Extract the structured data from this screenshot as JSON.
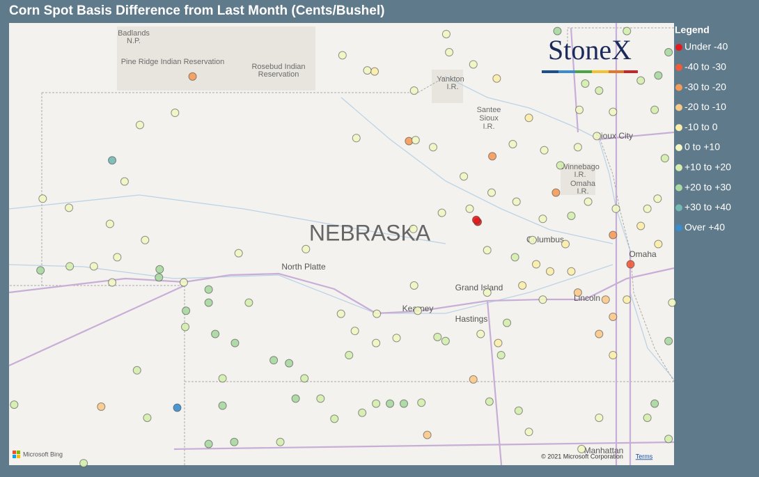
{
  "title": "Corn Spot Basis Difference from Last Month (Cents/Bushel)",
  "legend": {
    "title": "Legend",
    "layers": [
      {
        "name": "Under -40",
        "color": "#e41a1c",
        "points": [
          [
            -98.09,
            41.63
          ],
          [
            -98.11,
            41.65
          ]
        ]
      },
      {
        "name": "-40 to -30",
        "color": "#f05a3a",
        "points": [
          [
            -96.0,
            41.21
          ]
        ]
      },
      {
        "name": "-30 to -20",
        "color": "#f59b5a",
        "points": [
          [
            -101.99,
            43.07
          ],
          [
            -99.03,
            42.43
          ],
          [
            -97.89,
            42.28
          ],
          [
            -97.02,
            41.92
          ],
          [
            -96.24,
            41.5
          ]
        ]
      },
      {
        "name": "-20 to -10",
        "color": "#f9c98a",
        "points": [
          [
            -103.24,
            39.8
          ],
          [
            -98.78,
            39.52
          ],
          [
            -98.15,
            40.07
          ],
          [
            -96.72,
            40.93
          ],
          [
            -96.34,
            40.86
          ],
          [
            -96.24,
            40.69
          ],
          [
            -96.43,
            40.52
          ]
        ]
      },
      {
        "name": "-10 to 0",
        "color": "#fbeeaa",
        "points": [
          [
            -97.81,
            40.43
          ],
          [
            -97.83,
            43.05
          ],
          [
            -99.5,
            43.12
          ],
          [
            -97.39,
            42.66
          ],
          [
            -95.86,
            41.59
          ],
          [
            -96.89,
            41.41
          ],
          [
            -97.29,
            41.21
          ],
          [
            -97.48,
            41.0
          ],
          [
            -97.1,
            41.14
          ],
          [
            -96.81,
            41.14
          ],
          [
            -96.24,
            40.31
          ],
          [
            -95.62,
            41.41
          ],
          [
            -96.05,
            40.86
          ]
        ]
      },
      {
        "name": "0 to +10",
        "color": "#f1f6c2",
        "points": [
          [
            -102.23,
            42.71
          ],
          [
            -102.71,
            42.59
          ],
          [
            -102.92,
            42.03
          ],
          [
            -104.04,
            41.86
          ],
          [
            -103.68,
            41.77
          ],
          [
            -103.12,
            41.61
          ],
          [
            -102.64,
            41.45
          ],
          [
            -103.02,
            41.28
          ],
          [
            -102.11,
            41.03
          ],
          [
            -99.77,
            40.55
          ],
          [
            -99.48,
            40.43
          ],
          [
            -99.2,
            40.48
          ],
          [
            -98.91,
            40.75
          ],
          [
            -97.39,
            39.55
          ],
          [
            -96.67,
            39.38
          ],
          [
            -96.43,
            39.69
          ],
          [
            -95.43,
            40.83
          ],
          [
            -101.36,
            41.32
          ],
          [
            -100.44,
            41.36
          ],
          [
            -99.75,
            42.46
          ],
          [
            -98.94,
            42.44
          ],
          [
            -98.7,
            42.37
          ],
          [
            -99.94,
            43.28
          ],
          [
            -98.52,
            43.49
          ],
          [
            -98.48,
            43.31
          ],
          [
            -98.15,
            43.19
          ],
          [
            -98.96,
            42.93
          ],
          [
            -99.6,
            43.13
          ],
          [
            -97.61,
            42.4
          ],
          [
            -97.18,
            42.34
          ],
          [
            -96.72,
            42.37
          ],
          [
            -96.46,
            42.48
          ],
          [
            -96.7,
            42.74
          ],
          [
            -96.24,
            42.72
          ],
          [
            -95.63,
            41.86
          ],
          [
            -96.2,
            41.76
          ],
          [
            -96.58,
            41.83
          ],
          [
            -97.2,
            41.66
          ],
          [
            -97.34,
            41.45
          ],
          [
            -97.96,
            41.35
          ],
          [
            -98.2,
            41.76
          ],
          [
            -97.56,
            41.83
          ],
          [
            -97.2,
            40.86
          ],
          [
            -97.96,
            40.93
          ],
          [
            -98.96,
            41.0
          ],
          [
            -99.47,
            40.72
          ],
          [
            -99.96,
            40.72
          ],
          [
            -98.05,
            40.52
          ],
          [
            -98.58,
            41.72
          ],
          [
            -98.97,
            41.56
          ],
          [
            -98.28,
            42.08
          ],
          [
            -97.9,
            41.92
          ],
          [
            -103.09,
            41.03
          ],
          [
            -103.34,
            41.19
          ],
          [
            -95.77,
            41.76
          ]
        ]
      },
      {
        "name": "+10 to +20",
        "color": "#d4edae",
        "points": [
          [
            -103.67,
            41.19
          ],
          [
            -101.22,
            40.83
          ],
          [
            -102.09,
            40.59
          ],
          [
            -101.58,
            40.08
          ],
          [
            -102.75,
            40.16
          ],
          [
            -104.43,
            39.82
          ],
          [
            -102.61,
            39.69
          ],
          [
            -100.79,
            39.45
          ],
          [
            -103.48,
            39.24
          ],
          [
            -100.24,
            39.88
          ],
          [
            -99.48,
            39.83
          ],
          [
            -98.86,
            39.84
          ],
          [
            -99.67,
            39.74
          ],
          [
            -100.05,
            39.68
          ],
          [
            -100.46,
            40.08
          ],
          [
            -99.85,
            40.31
          ],
          [
            -98.64,
            40.49
          ],
          [
            -97.69,
            40.63
          ],
          [
            -97.77,
            40.31
          ],
          [
            -97.93,
            39.85
          ],
          [
            -97.53,
            39.76
          ],
          [
            -95.77,
            39.69
          ],
          [
            -95.48,
            39.48
          ],
          [
            -96.96,
            42.19
          ],
          [
            -95.67,
            42.74
          ],
          [
            -95.86,
            43.03
          ],
          [
            -96.05,
            43.52
          ],
          [
            -96.62,
            43.0
          ],
          [
            -95.53,
            42.26
          ],
          [
            -96.81,
            41.69
          ],
          [
            -97.58,
            41.28
          ],
          [
            -98.53,
            40.45
          ],
          [
            -96.43,
            42.93
          ]
        ]
      },
      {
        "name": "+20 to +30",
        "color": "#a9d8a0",
        "points": [
          [
            -104.07,
            41.15
          ],
          [
            -102.44,
            41.16
          ],
          [
            -102.45,
            41.08
          ],
          [
            -101.77,
            40.96
          ],
          [
            -101.77,
            40.83
          ],
          [
            -102.08,
            40.75
          ],
          [
            -101.68,
            40.52
          ],
          [
            -101.41,
            40.43
          ],
          [
            -100.88,
            40.26
          ],
          [
            -100.67,
            40.23
          ],
          [
            -101.58,
            39.81
          ],
          [
            -101.77,
            39.43
          ],
          [
            -101.42,
            39.45
          ],
          [
            -100.58,
            39.88
          ],
          [
            -99.29,
            39.83
          ],
          [
            -99.1,
            39.83
          ],
          [
            -95.67,
            39.83
          ],
          [
            -95.48,
            40.45
          ],
          [
            -95.62,
            43.08
          ],
          [
            -95.48,
            43.31
          ],
          [
            -97.0,
            43.52
          ]
        ]
      },
      {
        "name": "+30 to +40",
        "color": "#74b8b2",
        "points": [
          [
            -103.09,
            42.24
          ]
        ]
      },
      {
        "name": "Over +40",
        "color": "#3a8ccc",
        "points": [
          [
            -102.2,
            39.79
          ]
        ]
      }
    ]
  },
  "map": {
    "places": [
      "Badlands",
      "N.P.",
      "Pine Ridge Indian Reservation",
      "Rosebud Indian",
      "Reservation",
      "Yankton",
      "I.R.",
      "Santee",
      "Sioux",
      "I.R.",
      "Sioux City",
      "Winnebago",
      "I.R.",
      "Omaha",
      "I.R.",
      "NEBRASKA",
      "North Platte",
      "Grand Island",
      "Kearney",
      "Hastings",
      "Columbus",
      "Lincoln",
      "Omaha",
      "Manhattan"
    ],
    "logo": "StoneX",
    "provider": "Microsoft Bing",
    "attribution": "© 2021 Microsoft Corporation",
    "terms": "Terms"
  }
}
